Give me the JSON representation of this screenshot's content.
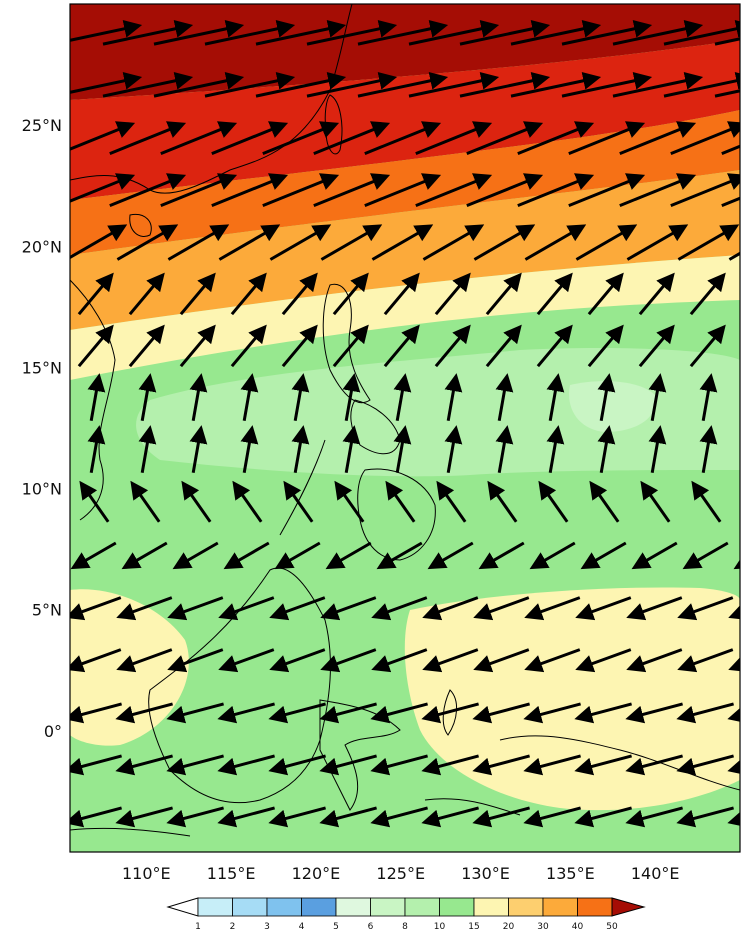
{
  "map": {
    "lat_labels": [
      "25°N",
      "20°N",
      "15°N",
      "10°N",
      "5°N",
      "0°"
    ],
    "lat_values": [
      25,
      20,
      15,
      10,
      5,
      0
    ],
    "lon_labels": [
      "110°E",
      "115°E",
      "120°E",
      "125°E",
      "130°E",
      "135°E",
      "140°E"
    ],
    "lon_values": [
      110,
      115,
      120,
      125,
      130,
      135,
      140
    ],
    "lon_range": [
      105.5,
      145
    ],
    "lat_range": [
      -5,
      30
    ]
  },
  "colorbar": {
    "levels": [
      "1",
      "2",
      "3",
      "4",
      "5",
      "6",
      "8",
      "10",
      "15",
      "20",
      "30",
      "40",
      "50"
    ],
    "colors": [
      "#e6f7fb",
      "#c7eef8",
      "#a6dcf5",
      "#7fc2ee",
      "#5a9fe0",
      "#dff8df",
      "#c9f5c4",
      "#b4f0ad",
      "#97e88f",
      "#fdf5b2",
      "#fdcf6f",
      "#fcaa3a",
      "#f67116",
      "#dc2410",
      "#a50d05"
    ],
    "under_color": "#ffffff",
    "over_color": "#a50d05"
  },
  "palette": {
    "water_background": "#97e88f",
    "land_line": "#000000",
    "arrow": "#000000"
  }
}
